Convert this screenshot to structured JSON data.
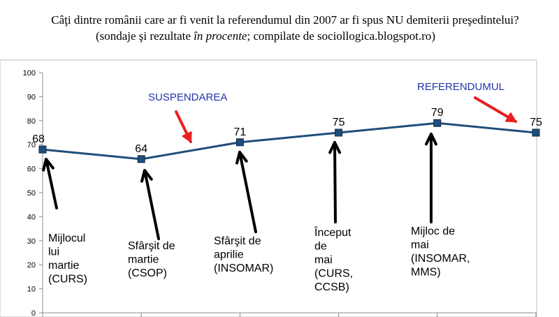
{
  "title_line1": "Câţi dintre românii care ar fi venit la referendumul din 2007 ar fi spus NU demiterii preşedintelui?",
  "title_line2_pre": "(sondaje şi rezultate ",
  "title_line2_em": "în procente",
  "title_line2_post": "; compilate de sociollogica.blogspot.ro)",
  "chart_data": {
    "type": "line",
    "ylim": [
      0,
      100
    ],
    "yticks": [
      0,
      10,
      20,
      30,
      40,
      50,
      60,
      70,
      80,
      90,
      100
    ],
    "series": [
      {
        "values": [
          68,
          64,
          71,
          75,
          79,
          75
        ]
      }
    ],
    "data_labels": [
      "68",
      "64",
      "71",
      "75",
      "79",
      "75"
    ],
    "poll_labels": [
      [
        "Mijlocul",
        "lui",
        "martie",
        "(CURS)"
      ],
      [
        "Sfârşit de",
        "martie",
        "(CSOP)"
      ],
      [
        "Sfârşit de",
        "aprilie",
        "(INSOMAR)"
      ],
      [
        "Început",
        "de",
        "mai",
        "(CURS,",
        "CCSB)"
      ],
      [
        "Mijloc de",
        "mai",
        "(INSOMAR,",
        "MMS)"
      ]
    ],
    "annotations": [
      {
        "text": "SUSPENDAREA",
        "between": [
          1,
          2
        ]
      },
      {
        "text": "REFERENDUMUL",
        "at": 5
      }
    ],
    "colors": {
      "line": "#1f4e79",
      "marker": "#1f4e79",
      "annotation_text": "#2233aa",
      "red_arrow": "#e82020",
      "black_arrow": "#000000"
    },
    "grid": false
  }
}
